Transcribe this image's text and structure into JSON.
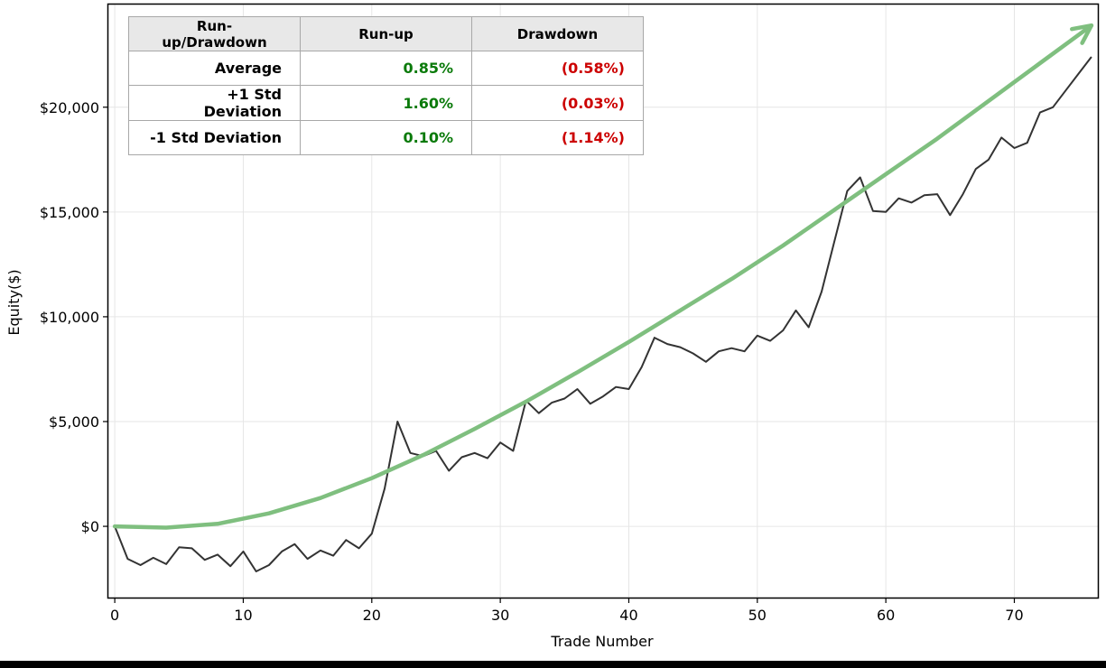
{
  "chart_data": {
    "type": "line",
    "xlabel": "Trade Number",
    "ylabel": "Equity($)",
    "xlim": [
      -0.5,
      76.5
    ],
    "ylim": [
      -3400,
      24900
    ],
    "grid": true,
    "x_ticks": [
      0,
      10,
      20,
      30,
      40,
      50,
      60,
      70
    ],
    "y_ticks": [
      0,
      5000,
      10000,
      15000,
      20000
    ],
    "y_tick_labels": [
      "$0",
      "$5,000",
      "$10,000",
      "$15,000",
      "$20,000"
    ],
    "series": [
      {
        "style": "line",
        "color": "#333333",
        "x": [
          0,
          1,
          2,
          3,
          4,
          5,
          6,
          7,
          8,
          9,
          10,
          11,
          12,
          13,
          14,
          15,
          16,
          17,
          18,
          19,
          20,
          21,
          22,
          23,
          24,
          25,
          26,
          27,
          28,
          29,
          30,
          31,
          32,
          33,
          34,
          35,
          36,
          37,
          38,
          39,
          40,
          41,
          42,
          43,
          44,
          45,
          46,
          47,
          48,
          49,
          50,
          51,
          52,
          53,
          54,
          55,
          56,
          57,
          58,
          59,
          60,
          61,
          62,
          63,
          64,
          65,
          66,
          67,
          68,
          69,
          70,
          71,
          72,
          73,
          74,
          75,
          76
        ],
        "values": [
          0,
          -1550,
          -1850,
          -1500,
          -1800,
          -1000,
          -1050,
          -1600,
          -1350,
          -1900,
          -1200,
          -2150,
          -1850,
          -1200,
          -850,
          -1550,
          -1150,
          -1400,
          -650,
          -1050,
          -350,
          1800,
          5000,
          3500,
          3350,
          3600,
          2650,
          3300,
          3500,
          3250,
          4000,
          3600,
          6000,
          5400,
          5900,
          6100,
          6550,
          5850,
          6200,
          6650,
          6550,
          7600,
          9000,
          8700,
          8550,
          8250,
          7850,
          8350,
          8500,
          8350,
          9100,
          8850,
          9350,
          10300,
          9500,
          11200,
          13600,
          16000,
          16650,
          15050,
          15000,
          15650,
          15450,
          15800,
          15850,
          14850,
          15850,
          17050,
          17500,
          18550,
          18050,
          18300,
          19750,
          20000,
          20800,
          21600,
          22400
        ]
      },
      {
        "style": "trend",
        "color": "#7fbf7f",
        "x": [
          0,
          4,
          8,
          12,
          16,
          20,
          24,
          28,
          32,
          36,
          40,
          44,
          48,
          52,
          56,
          60,
          64,
          68,
          72,
          76
        ],
        "values": [
          0,
          -60,
          120,
          620,
          1350,
          2300,
          3400,
          4650,
          5950,
          7350,
          8800,
          10300,
          11800,
          13400,
          15100,
          16800,
          18500,
          20300,
          22100,
          23900
        ]
      }
    ]
  },
  "stats_table": {
    "headers": [
      "Run-up/Drawdown",
      "Run-up",
      "Drawdown"
    ],
    "rows": [
      {
        "label": "Average",
        "runup": "0.85%",
        "drawdown": "(0.58%)"
      },
      {
        "label": "+1 Std Deviation",
        "runup": "1.60%",
        "drawdown": "(0.03%)"
      },
      {
        "label": "-1 Std Deviation",
        "runup": "0.10%",
        "drawdown": "(1.14%)"
      }
    ]
  }
}
